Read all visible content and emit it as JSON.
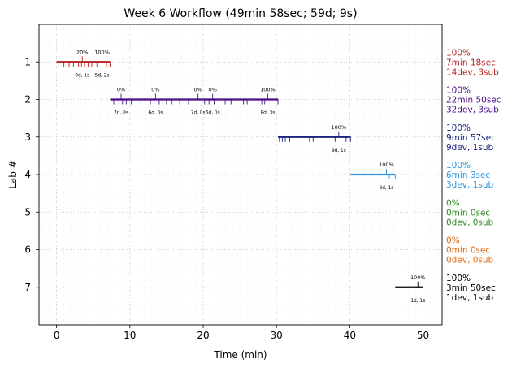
{
  "chart_data": {
    "type": "timeline",
    "title": "Week 6 Workflow (49min 58sec; 59d; 9s)",
    "xlabel": "Time (min)",
    "ylabel": "Lab #",
    "xlim": [
      -2.4,
      52.6
    ],
    "ylim": [
      8.0,
      0.0
    ],
    "xticks": [
      0,
      10,
      20,
      30,
      40,
      50
    ],
    "yticks": [
      1,
      2,
      3,
      4,
      5,
      6,
      7
    ],
    "grid": true,
    "minor_grid": true,
    "labs": [
      {
        "lab": 1,
        "color": "#b22222",
        "segment": [
          0.0,
          7.3
        ],
        "ticks": [
          0.3,
          1.0,
          1.7,
          2.3,
          3.0,
          3.4,
          3.8,
          4.3,
          4.8,
          5.5,
          6.2,
          6.8,
          7.3
        ],
        "milestones": [
          {
            "x": 3.5,
            "pct": "20%",
            "dur": "9d, 1s"
          },
          {
            "x": 6.2,
            "pct": "100%",
            "dur": "5d, 2s"
          }
        ],
        "summary": [
          "100%",
          "7min 18sec",
          "14dev, 3sub"
        ]
      },
      {
        "lab": 2,
        "color": "#4b0f8a",
        "segment": [
          7.3,
          30.2
        ],
        "ticks": [
          7.8,
          8.5,
          9.0,
          9.5,
          10.2,
          11.5,
          12.8,
          14.0,
          14.5,
          15.0,
          15.7,
          16.8,
          18.0,
          20.2,
          20.8,
          21.5,
          23.0,
          23.8,
          25.5,
          26.0,
          27.5,
          28.0,
          28.4,
          30.2
        ],
        "milestones": [
          {
            "x": 8.8,
            "pct": "0%",
            "dur": "7d, 0s"
          },
          {
            "x": 13.5,
            "pct": "0%",
            "dur": "6d, 0s"
          },
          {
            "x": 19.3,
            "pct": "0%",
            "dur": "7d, 0s"
          },
          {
            "x": 21.3,
            "pct": "0%",
            "dur": "6d, 0s"
          },
          {
            "x": 28.8,
            "pct": "100%",
            "dur": "8d, 3s"
          }
        ],
        "summary": [
          "100%",
          "22min 50sec",
          "32dev, 3sub"
        ]
      },
      {
        "lab": 3,
        "color": "#1a237e",
        "segment": [
          30.2,
          40.1
        ],
        "ticks": [
          30.4,
          30.8,
          31.2,
          31.8,
          34.5,
          35.0,
          38.0,
          39.5,
          40.1
        ],
        "milestones": [
          {
            "x": 38.5,
            "pct": "100%",
            "dur": "9d, 1s"
          }
        ],
        "summary": [
          "100%",
          "9min 57sec",
          "9dev, 1sub"
        ]
      },
      {
        "lab": 4,
        "color": "#2f95e0",
        "segment": [
          40.1,
          46.2
        ],
        "ticks": [
          45.4,
          45.9,
          46.2
        ],
        "milestones": [
          {
            "x": 45.0,
            "pct": "100%",
            "dur": "3d, 1s"
          }
        ],
        "summary": [
          "100%",
          "6min 3sec",
          "3dev, 1sub"
        ]
      },
      {
        "lab": 5,
        "color": "#2e8b22",
        "segment": null,
        "ticks": [],
        "milestones": [],
        "summary": [
          "0%",
          "0min 0sec",
          "0dev, 0sub"
        ]
      },
      {
        "lab": 6,
        "color": "#e06a10",
        "segment": null,
        "ticks": [],
        "milestones": [],
        "summary": [
          "0%",
          "0min 0sec",
          "0dev, 0sub"
        ]
      },
      {
        "lab": 7,
        "color": "#000000",
        "segment": [
          46.2,
          50.0
        ],
        "ticks": [
          50.0
        ],
        "milestones": [
          {
            "x": 49.3,
            "pct": "100%",
            "dur": "1d, 1s"
          }
        ],
        "summary": [
          "100%",
          "3min 50sec",
          "1dev, 1sub"
        ]
      }
    ]
  }
}
